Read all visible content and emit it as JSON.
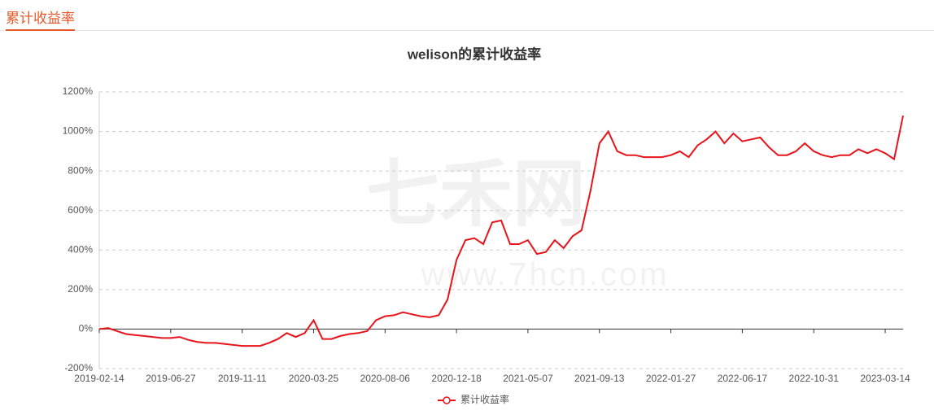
{
  "header": {
    "title": "累计收益率"
  },
  "chart_data": {
    "type": "line",
    "title": "welison的累计收益率",
    "watermark": {
      "brand": "七禾网",
      "url": "www.7hcn.com"
    },
    "categories": [
      "2019-02-14",
      null,
      null,
      null,
      null,
      null,
      null,
      null,
      "2019-06-27",
      null,
      null,
      null,
      null,
      null,
      null,
      null,
      "2019-11-11",
      null,
      null,
      null,
      null,
      null,
      null,
      null,
      "2020-03-25",
      null,
      null,
      null,
      null,
      null,
      null,
      null,
      "2020-08-06",
      null,
      null,
      null,
      null,
      null,
      null,
      null,
      "2020-12-18",
      null,
      null,
      null,
      null,
      null,
      null,
      null,
      "2021-05-07",
      null,
      null,
      null,
      null,
      null,
      null,
      null,
      "2021-09-13",
      null,
      null,
      null,
      null,
      null,
      null,
      null,
      "2022-01-27",
      null,
      null,
      null,
      null,
      null,
      null,
      null,
      "2022-06-17",
      null,
      null,
      null,
      null,
      null,
      null,
      null,
      "2022-10-31",
      null,
      null,
      null,
      null,
      null,
      null,
      null,
      "2023-03-14",
      null,
      null
    ],
    "series": [
      {
        "name": "累计收益率",
        "color": "#e8141b",
        "values": [
          0,
          5,
          -10,
          -25,
          -30,
          -35,
          -40,
          -45,
          -45,
          -40,
          -55,
          -65,
          -70,
          -70,
          -75,
          -80,
          -85,
          -85,
          -85,
          -70,
          -50,
          -20,
          -40,
          -20,
          45,
          -50,
          -50,
          -35,
          -25,
          -20,
          -10,
          45,
          65,
          70,
          85,
          75,
          65,
          60,
          70,
          150,
          350,
          450,
          460,
          430,
          540,
          550,
          430,
          430,
          450,
          380,
          390,
          450,
          410,
          470,
          500,
          700,
          940,
          1000,
          900,
          880,
          880,
          870,
          870,
          870,
          880,
          900,
          870,
          930,
          960,
          1000,
          940,
          990,
          950,
          960,
          970,
          920,
          880,
          880,
          900,
          940,
          900,
          880,
          870,
          880,
          880,
          910,
          890,
          910,
          890,
          860,
          1080
        ]
      }
    ],
    "ylim": [
      -200,
      1200
    ],
    "yticks": [
      {
        "value": -200,
        "label": "-200%"
      },
      {
        "value": 0,
        "label": "0%"
      },
      {
        "value": 200,
        "label": "200%"
      },
      {
        "value": 400,
        "label": "400%"
      },
      {
        "value": 600,
        "label": "600%"
      },
      {
        "value": 800,
        "label": "800%"
      },
      {
        "value": 1000,
        "label": "1000%"
      },
      {
        "value": 1200,
        "label": "1200%"
      }
    ],
    "grid": true,
    "legend": "bottom"
  }
}
